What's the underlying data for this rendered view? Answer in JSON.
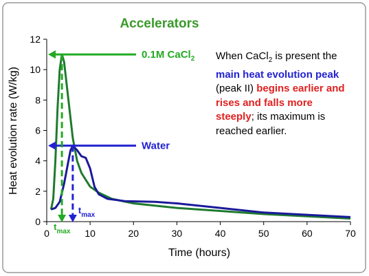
{
  "chart_data": {
    "type": "line",
    "title": "Accelerators",
    "title_color": "#3a9a2a",
    "xlabel": "Time (hours)",
    "ylabel": "Heat evolution rate (W/kg)",
    "xlim": [
      0,
      70
    ],
    "ylim": [
      0,
      12
    ],
    "xticks": [
      0,
      10,
      20,
      30,
      40,
      50,
      60,
      70
    ],
    "yticks": [
      0,
      2,
      4,
      6,
      8,
      10,
      12
    ],
    "grid": false,
    "series": [
      {
        "name": "0.1M CaCl2",
        "color": "#1f7a2e",
        "x": [
          1,
          1.5,
          2,
          2.5,
          3,
          3.5,
          4,
          5,
          6,
          7,
          8,
          10,
          12,
          15,
          20,
          30,
          40,
          50,
          60,
          70
        ],
        "values": [
          0.8,
          1.5,
          4,
          7.5,
          10,
          11,
          10.5,
          8,
          5.5,
          4,
          3.2,
          2.3,
          1.9,
          1.5,
          1.2,
          0.9,
          0.7,
          0.5,
          0.35,
          0.2
        ]
      },
      {
        "name": "Water",
        "color": "#1a1a9a",
        "x": [
          1,
          2,
          3,
          4,
          5,
          5.5,
          6,
          7,
          8,
          9,
          10,
          11,
          12,
          14,
          18,
          25,
          30,
          40,
          50,
          60,
          70
        ],
        "values": [
          0.8,
          0.9,
          1.3,
          2.5,
          4,
          4.7,
          5,
          4.7,
          4.3,
          4.2,
          3.5,
          2.3,
          1.8,
          1.5,
          1.35,
          1.3,
          1.2,
          0.9,
          0.6,
          0.45,
          0.3
        ]
      }
    ],
    "annotations": [
      {
        "text": "0.1M CaCl",
        "sub": "2",
        "color": "#22aa22",
        "series": 0
      },
      {
        "text": "Water",
        "color": "#2222d0",
        "series": 1
      }
    ],
    "tmax": [
      {
        "text": "t",
        "sub": "max",
        "color": "#22aa22",
        "series": 0
      },
      {
        "text": "t",
        "sub": "max",
        "color": "#2222d0",
        "series": 1
      }
    ],
    "description": [
      {
        "text": "When CaCl"
      },
      {
        "text": "2",
        "sub": true
      },
      {
        "text": " is present the "
      },
      {
        "text": "main heat evolution peak",
        "color": "#2222d0",
        "bold": true
      },
      {
        "text": " (peak II) "
      },
      {
        "text": "begins earlier and rises and falls more steeply",
        "color": "#e02020",
        "bold": true
      },
      {
        "text": "; its maximum is reached earlier."
      }
    ]
  }
}
